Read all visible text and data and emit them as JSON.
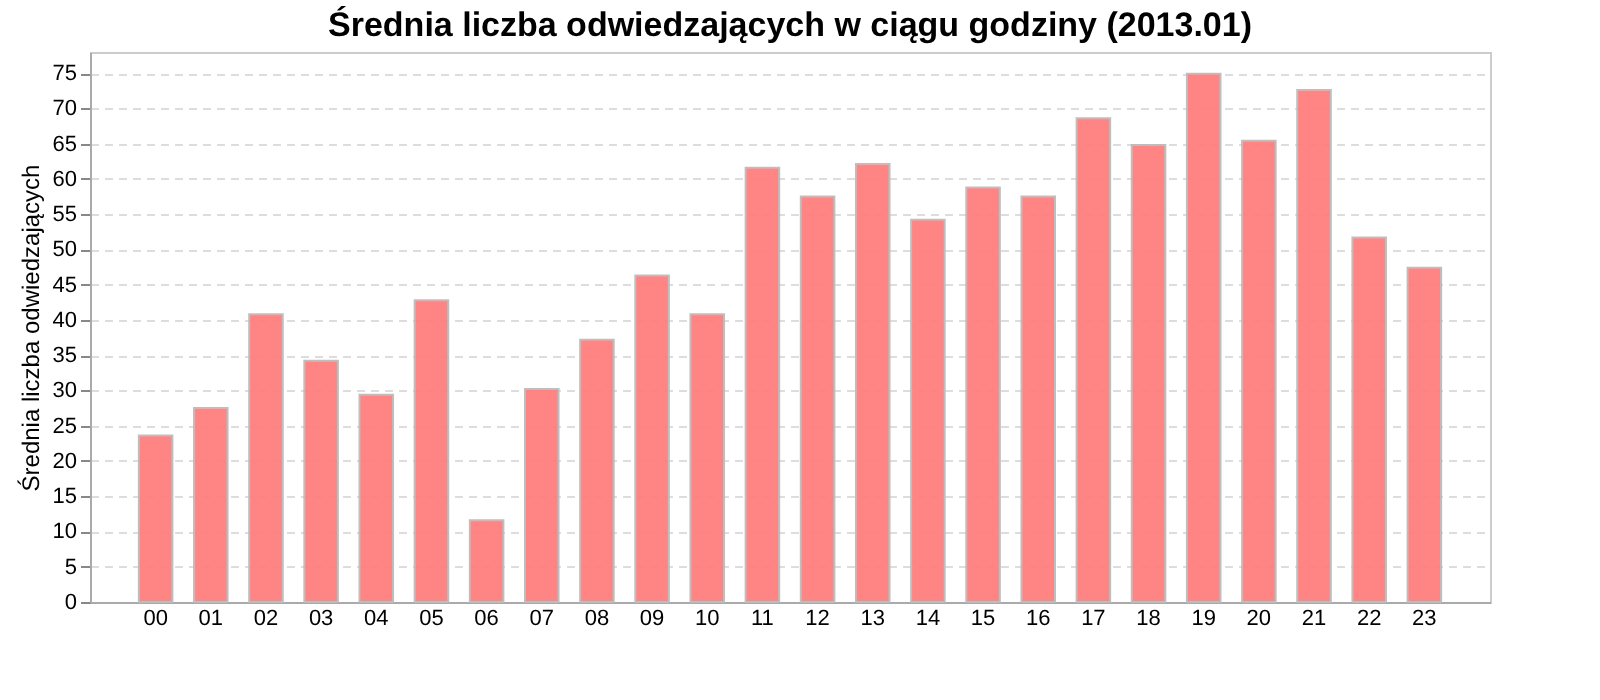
{
  "chart_data": {
    "type": "bar",
    "title": "Średnia liczba odwiedzających w ciągu godziny (2013.01)",
    "ylabel": "Średnia liczba odwiedzających",
    "categories": [
      "00",
      "01",
      "02",
      "03",
      "04",
      "05",
      "06",
      "07",
      "08",
      "09",
      "10",
      "11",
      "12",
      "13",
      "14",
      "15",
      "16",
      "17",
      "18",
      "19",
      "20",
      "21",
      "22",
      "23"
    ],
    "values": [
      23.6,
      27.5,
      40.8,
      34.2,
      29.4,
      42.8,
      11.6,
      30.2,
      37.2,
      46.3,
      40.8,
      61.6,
      57.5,
      62.1,
      54.2,
      58.8,
      57.5,
      68.6,
      64.8,
      74.9,
      65.4,
      72.6,
      51.7,
      47.4
    ],
    "color": "#ff7f7f",
    "ylim": [
      0,
      78
    ],
    "yticks": [
      0,
      5,
      10,
      15,
      20,
      25,
      30,
      35,
      40,
      45,
      50,
      55,
      60,
      65,
      70,
      75
    ],
    "grid": "y"
  }
}
